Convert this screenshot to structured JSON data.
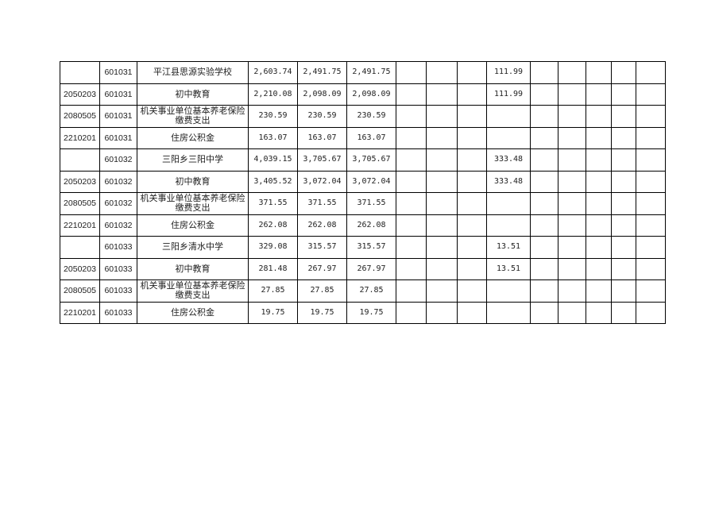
{
  "rows": [
    {
      "func": "",
      "unit": "601031",
      "name": "平江县思源实验学校",
      "c1": "2,603.74",
      "c2": "2,491.75",
      "c3": "2,491.75",
      "c7": "111.99"
    },
    {
      "func": "2050203",
      "unit": "601031",
      "name": "初中教育",
      "c1": "2,210.08",
      "c2": "2,098.09",
      "c3": "2,098.09",
      "c7": "111.99"
    },
    {
      "func": "2080505",
      "unit": "601031",
      "name": "机关事业单位基本养老保险缴费支出",
      "c1": "230.59",
      "c2": "230.59",
      "c3": "230.59",
      "c7": ""
    },
    {
      "func": "2210201",
      "unit": "601031",
      "name": "住房公积金",
      "c1": "163.07",
      "c2": "163.07",
      "c3": "163.07",
      "c7": ""
    },
    {
      "func": "",
      "unit": "601032",
      "name": "三阳乡三阳中学",
      "c1": "4,039.15",
      "c2": "3,705.67",
      "c3": "3,705.67",
      "c7": "333.48"
    },
    {
      "func": "2050203",
      "unit": "601032",
      "name": "初中教育",
      "c1": "3,405.52",
      "c2": "3,072.04",
      "c3": "3,072.04",
      "c7": "333.48"
    },
    {
      "func": "2080505",
      "unit": "601032",
      "name": "机关事业单位基本养老保险缴费支出",
      "c1": "371.55",
      "c2": "371.55",
      "c3": "371.55",
      "c7": ""
    },
    {
      "func": "2210201",
      "unit": "601032",
      "name": "住房公积金",
      "c1": "262.08",
      "c2": "262.08",
      "c3": "262.08",
      "c7": ""
    },
    {
      "func": "",
      "unit": "601033",
      "name": "三阳乡清水中学",
      "c1": "329.08",
      "c2": "315.57",
      "c3": "315.57",
      "c7": "13.51"
    },
    {
      "func": "2050203",
      "unit": "601033",
      "name": "初中教育",
      "c1": "281.48",
      "c2": "267.97",
      "c3": "267.97",
      "c7": "13.51"
    },
    {
      "func": "2080505",
      "unit": "601033",
      "name": "机关事业单位基本养老保险缴费支出",
      "c1": "27.85",
      "c2": "27.85",
      "c3": "27.85",
      "c7": ""
    },
    {
      "func": "2210201",
      "unit": "601033",
      "name": "住房公积金",
      "c1": "19.75",
      "c2": "19.75",
      "c3": "19.75",
      "c7": ""
    }
  ]
}
